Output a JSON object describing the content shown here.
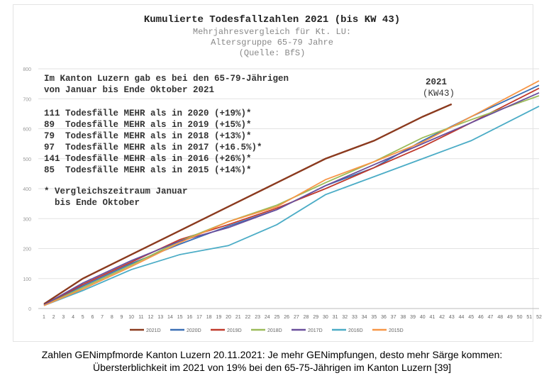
{
  "chart_data": {
    "type": "line",
    "title": "Kumulierte Todesfallzahlen 2021 (bis KW 43)",
    "subtitle": [
      "Mehrjahresvergleich für Kt. LU:",
      "Altersgruppe 65-79 Jahre",
      "(Quelle: BfS)"
    ],
    "xlabel": "",
    "ylabel": "",
    "ylim": [
      0,
      800
    ],
    "yticks": [
      "0",
      "100",
      "200",
      "300",
      "400",
      "500",
      "600",
      "700",
      "800"
    ],
    "xlim": [
      1,
      52
    ],
    "grid": true,
    "legend_position": "bottom",
    "series": [
      {
        "name": "2021D",
        "color": "#8b3a1e",
        "x": [
          1,
          5,
          10,
          15,
          20,
          25,
          30,
          35,
          40,
          43
        ],
        "y": [
          15,
          100,
          180,
          260,
          340,
          420,
          500,
          560,
          640,
          682
        ]
      },
      {
        "name": "2020D",
        "color": "#3a6fb5",
        "x": [
          1,
          5,
          10,
          15,
          20,
          25,
          30,
          35,
          40,
          45,
          52
        ],
        "y": [
          12,
          75,
          150,
          215,
          275,
          330,
          410,
          470,
          560,
          640,
          745
        ]
      },
      {
        "name": "2019D",
        "color": "#c0392b",
        "x": [
          1,
          5,
          10,
          15,
          20,
          25,
          30,
          35,
          40,
          45,
          52
        ],
        "y": [
          12,
          80,
          155,
          230,
          280,
          335,
          400,
          470,
          540,
          620,
          735
        ]
      },
      {
        "name": "2018D",
        "color": "#9bbb59",
        "x": [
          1,
          5,
          10,
          15,
          20,
          25,
          30,
          35,
          40,
          45,
          52
        ],
        "y": [
          10,
          70,
          145,
          225,
          290,
          345,
          420,
          490,
          570,
          630,
          710
        ]
      },
      {
        "name": "2017D",
        "color": "#6a4f9c",
        "x": [
          1,
          5,
          10,
          15,
          20,
          25,
          30,
          35,
          40,
          45,
          52
        ],
        "y": [
          12,
          85,
          160,
          225,
          270,
          330,
          410,
          480,
          550,
          620,
          720
        ]
      },
      {
        "name": "2016D",
        "color": "#4bacc6",
        "x": [
          1,
          5,
          10,
          15,
          20,
          25,
          30,
          35,
          40,
          45,
          52
        ],
        "y": [
          10,
          60,
          130,
          180,
          210,
          280,
          380,
          440,
          500,
          560,
          675
        ]
      },
      {
        "name": "2015D",
        "color": "#f79646",
        "x": [
          1,
          5,
          10,
          15,
          20,
          25,
          30,
          35,
          40,
          45,
          52
        ],
        "y": [
          10,
          65,
          140,
          220,
          290,
          340,
          430,
          490,
          555,
          640,
          760
        ]
      }
    ],
    "annotations": {
      "label_2021": "2021",
      "label_kw": "(KW43)",
      "intro": "Im Kanton Luzern gab es bei den 65-79-Jährigen\nvon Januar bis Ende Oktober 2021",
      "rows": [
        "111 Todesfälle MEHR als in 2020 (+19%)*",
        "89  Todesfälle MEHR als in 2019 (+15%)*",
        "79  Todesfälle MEHR als in 2018 (+13%)*",
        "97  Todesfälle MEHR als in 2017 (+16.5%)*",
        "141 Todesfälle MEHR als in 2016 (+26%)*",
        "85  Todesfälle MEHR als in 2015 (+14%)*"
      ],
      "footnote": "* Vergleichszeitraum Januar\n  bis Ende Oktober"
    }
  },
  "caption": {
    "line1": "Zahlen GENimpfmorde Kanton Luzern 20.11.2021: Je mehr GENimpfungen, desto mehr Särge kommen:",
    "line2": "Übersterblichkeit im 2021 von 19% bei den 65-75-Jährigen im Kanton Luzern [39]"
  }
}
